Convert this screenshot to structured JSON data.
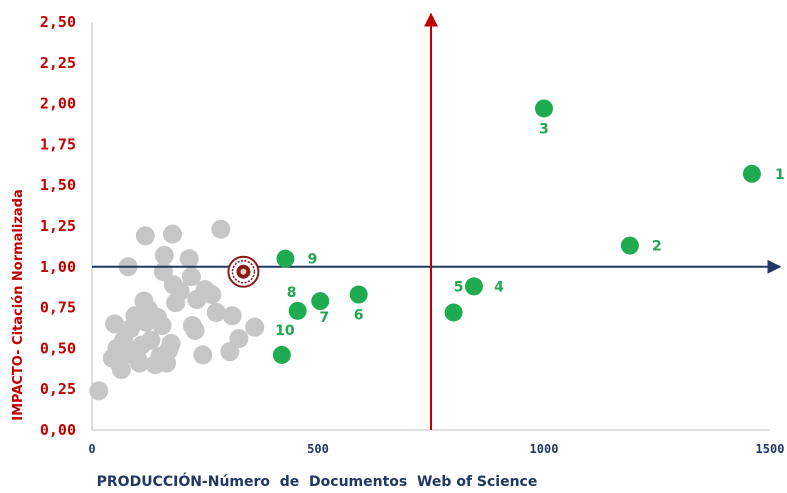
{
  "chart_data": {
    "type": "scatter",
    "xlabel": "PRODUCCIÓN-Número  de  Documentos  Web of Science",
    "ylabel": "IMPACTO- Citación Normalizada",
    "xlim": [
      0,
      1500
    ],
    "ylim": [
      0,
      2.5
    ],
    "xticks": [
      "0",
      "500",
      "1000",
      "1500"
    ],
    "xtick_values": [
      0,
      500,
      1000,
      1500
    ],
    "yticks": [
      "0,00",
      "0,25",
      "0,50",
      "0,75",
      "1,00",
      "1,25",
      "1,50",
      "1,75",
      "2,00",
      "2,25",
      "2,50"
    ],
    "ytick_values": [
      0,
      0.25,
      0.5,
      0.75,
      1.0,
      1.25,
      1.5,
      1.75,
      2.0,
      2.25,
      2.5
    ],
    "reference_lines": {
      "x": 750,
      "y": 1.0
    },
    "colors": {
      "highlighted": "#1fab4f",
      "others": "#c6c6c6",
      "x_axis_text": "#1f3864",
      "y_axis_text": "#c00000",
      "horizontal_line": "#1f3864",
      "vertical_line": "#c00000",
      "emblem": "#8b1a1a"
    },
    "series": [
      {
        "points": [
          {
            "label": "1",
            "x": 1460,
            "y": 1.57
          },
          {
            "label": "2",
            "x": 1190,
            "y": 1.13
          },
          {
            "label": "3",
            "x": 1000,
            "y": 1.97
          },
          {
            "label": "4",
            "x": 845,
            "y": 0.88
          },
          {
            "label": "5",
            "x": 800,
            "y": 0.72
          },
          {
            "label": "6",
            "x": 590,
            "y": 0.83
          },
          {
            "label": "7",
            "x": 505,
            "y": 0.79
          },
          {
            "label": "8",
            "x": 455,
            "y": 0.73
          },
          {
            "label": "9",
            "x": 428,
            "y": 1.05
          },
          {
            "label": "10",
            "x": 420,
            "y": 0.46
          }
        ]
      },
      {
        "points": [
          {
            "x": 15,
            "y": 0.24
          },
          {
            "x": 45,
            "y": 0.44
          },
          {
            "x": 50,
            "y": 0.65
          },
          {
            "x": 55,
            "y": 0.5
          },
          {
            "x": 60,
            "y": 0.41
          },
          {
            "x": 65,
            "y": 0.37
          },
          {
            "x": 70,
            "y": 0.55
          },
          {
            "x": 75,
            "y": 0.47
          },
          {
            "x": 80,
            "y": 1.0
          },
          {
            "x": 85,
            "y": 0.62
          },
          {
            "x": 90,
            "y": 0.48
          },
          {
            "x": 95,
            "y": 0.7
          },
          {
            "x": 100,
            "y": 0.44
          },
          {
            "x": 105,
            "y": 0.41
          },
          {
            "x": 110,
            "y": 0.52
          },
          {
            "x": 115,
            "y": 0.79
          },
          {
            "x": 118,
            "y": 1.19
          },
          {
            "x": 120,
            "y": 0.66
          },
          {
            "x": 125,
            "y": 0.74
          },
          {
            "x": 130,
            "y": 0.55
          },
          {
            "x": 140,
            "y": 0.4
          },
          {
            "x": 145,
            "y": 0.69
          },
          {
            "x": 150,
            "y": 0.45
          },
          {
            "x": 155,
            "y": 0.64
          },
          {
            "x": 158,
            "y": 0.97
          },
          {
            "x": 160,
            "y": 1.07
          },
          {
            "x": 165,
            "y": 0.41
          },
          {
            "x": 170,
            "y": 0.49
          },
          {
            "x": 175,
            "y": 0.53
          },
          {
            "x": 178,
            "y": 1.2
          },
          {
            "x": 180,
            "y": 0.89
          },
          {
            "x": 185,
            "y": 0.78
          },
          {
            "x": 195,
            "y": 0.85
          },
          {
            "x": 215,
            "y": 1.05
          },
          {
            "x": 220,
            "y": 0.94
          },
          {
            "x": 222,
            "y": 0.64
          },
          {
            "x": 228,
            "y": 0.61
          },
          {
            "x": 232,
            "y": 0.8
          },
          {
            "x": 245,
            "y": 0.46
          },
          {
            "x": 250,
            "y": 0.86
          },
          {
            "x": 265,
            "y": 0.83
          },
          {
            "x": 275,
            "y": 0.72
          },
          {
            "x": 285,
            "y": 1.23
          },
          {
            "x": 305,
            "y": 0.48
          },
          {
            "x": 310,
            "y": 0.7
          },
          {
            "x": 325,
            "y": 0.56
          },
          {
            "x": 360,
            "y": 0.63
          }
        ]
      }
    ],
    "emblem_position": {
      "x": 335,
      "y": 0.97
    }
  }
}
